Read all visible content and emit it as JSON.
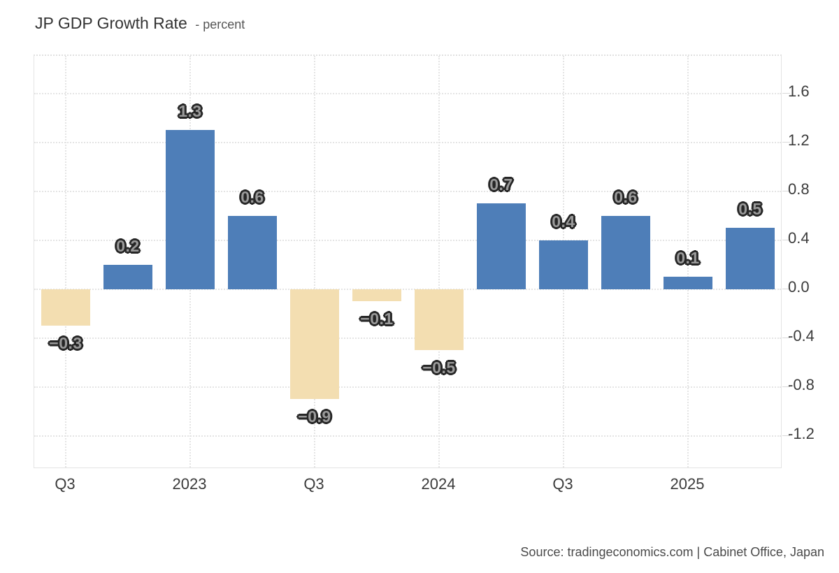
{
  "header": {
    "title": "JP GDP Growth Rate",
    "subtitle": "- percent"
  },
  "footer": {
    "source": "Source: tradingeconomics.com | Cabinet Office, Japan"
  },
  "colors": {
    "bar_positive": "#4e7eb8",
    "bar_negative": "#f3deb1",
    "grid": "#e4e4e4",
    "tick_text": "#3b3b3b"
  },
  "chart_data": {
    "type": "bar",
    "title": "JP GDP Growth Rate",
    "unit": "percent",
    "values": [
      -0.3,
      0.2,
      1.3,
      0.6,
      -0.9,
      -0.1,
      -0.5,
      0.7,
      0.4,
      0.6,
      0.1,
      0.5
    ],
    "bar_labels": [
      "−0.3",
      "0.2",
      "1.3",
      "0.6",
      "−0.9",
      "−0.1",
      "−0.5",
      "0.7",
      "0.4",
      "0.6",
      "0.1",
      "0.5"
    ],
    "x_tick_labels": [
      "Q3",
      "2023",
      "Q3",
      "2024",
      "Q3",
      "2025"
    ],
    "x_tick_bar_indices": [
      0,
      2,
      4,
      6,
      8,
      10
    ],
    "y_ticks": [
      1.6,
      1.2,
      0.8,
      0.4,
      0.0,
      -0.4,
      -0.8,
      -1.2
    ],
    "y_tick_labels": [
      "1.6",
      "1.2",
      "0.8",
      "0.4",
      "0.0",
      "-0.4",
      "-0.8",
      "-1.2"
    ],
    "ylim": [
      -1.48,
      1.91
    ],
    "y_axis_side": "right",
    "grid": true,
    "legend": false,
    "bar_color_positive": "#4e7eb8",
    "bar_color_negative": "#f3deb1"
  }
}
